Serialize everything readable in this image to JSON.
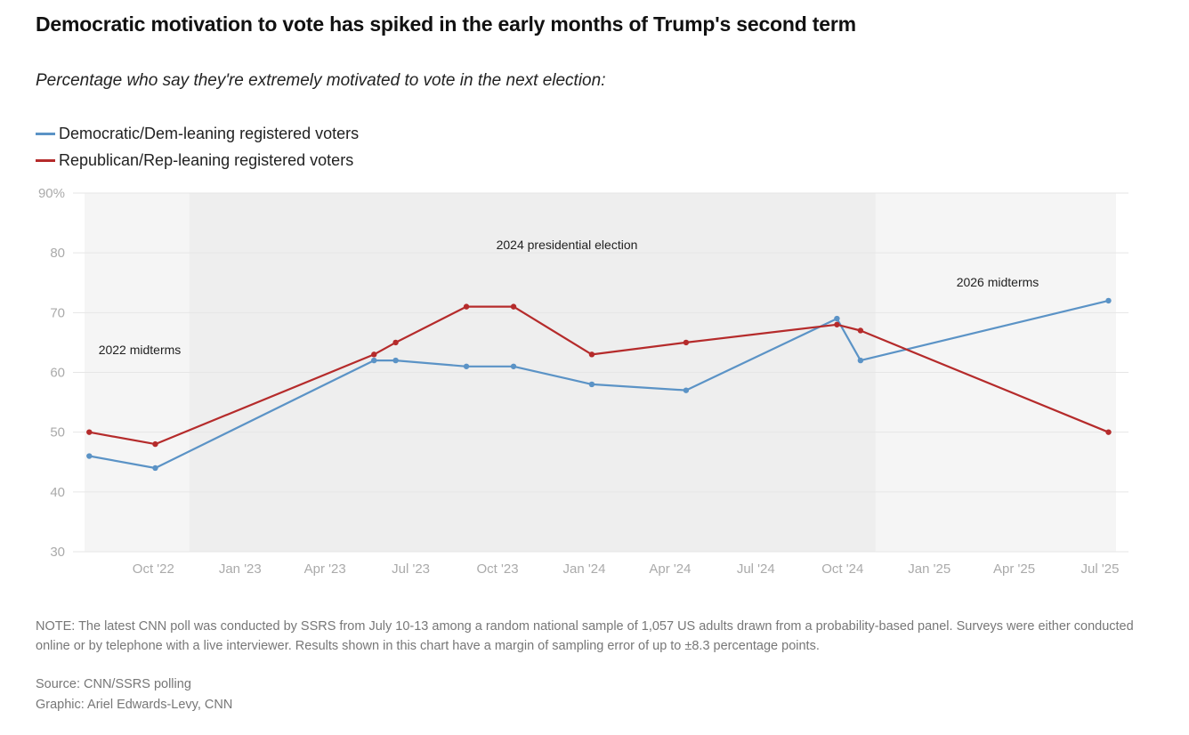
{
  "header": {
    "title": "Democratic motivation to vote has spiked in the early months of Trump's second term",
    "subtitle": "Percentage who say they're extremely motivated to vote in the next election:"
  },
  "legend": [
    {
      "label": "Democratic/Dem-leaning registered voters",
      "color": "#5b93c6"
    },
    {
      "label": "Republican/Rep-leaning registered voters",
      "color": "#b52b2b"
    }
  ],
  "chart_data": {
    "type": "line",
    "title": "Democratic motivation to vote has spiked in the early months of Trump's second term",
    "subtitle": "Percentage who say they're extremely motivated to vote in the next election:",
    "xlabel": "",
    "ylabel": "",
    "ylim": [
      30,
      90
    ],
    "yticks": [
      30,
      40,
      50,
      60,
      70,
      80,
      90
    ],
    "ytick_labels": [
      "30",
      "40",
      "50",
      "60",
      "70",
      "80",
      "90%"
    ],
    "xlim": [
      "2022-07-20",
      "2025-07-18"
    ],
    "xticks": [
      "2022-10-01",
      "2023-01-01",
      "2023-04-01",
      "2023-07-01",
      "2023-10-01",
      "2024-01-01",
      "2024-04-01",
      "2024-07-01",
      "2024-10-01",
      "2025-01-01",
      "2025-04-01",
      "2025-07-01"
    ],
    "xtick_labels": [
      "Oct '22",
      "Jan '23",
      "Apr '23",
      "Jul '23",
      "Oct '23",
      "Jan '24",
      "Apr '24",
      "Jul '24",
      "Oct '24",
      "Jan '25",
      "Apr '25",
      "Jul '25"
    ],
    "grid": true,
    "legend_position": "top-left",
    "regions": [
      {
        "label": "2022 midterms",
        "start": "2022-07-20",
        "end": "2022-11-08",
        "fill": "#f5f5f5"
      },
      {
        "label": "2024 presidential election",
        "start": "2022-11-08",
        "end": "2024-11-05",
        "fill": "#eeeeee"
      },
      {
        "label": "2026 midterms",
        "start": "2024-11-05",
        "end": "2025-07-18",
        "fill": "#f5f5f5"
      }
    ],
    "series": [
      {
        "name": "Democratic/Dem-leaning registered voters",
        "color": "#5b93c6",
        "points": [
          {
            "x": "2022-07-25",
            "y": 46
          },
          {
            "x": "2022-10-03",
            "y": 44
          },
          {
            "x": "2023-05-23",
            "y": 62
          },
          {
            "x": "2023-06-15",
            "y": 62
          },
          {
            "x": "2023-08-29",
            "y": 61
          },
          {
            "x": "2023-10-18",
            "y": 61
          },
          {
            "x": "2024-01-09",
            "y": 58
          },
          {
            "x": "2024-04-18",
            "y": 57
          },
          {
            "x": "2024-09-25",
            "y": 69
          },
          {
            "x": "2024-10-20",
            "y": 62
          },
          {
            "x": "2025-07-10",
            "y": 72
          }
        ]
      },
      {
        "name": "Republican/Rep-leaning registered voters",
        "color": "#b52b2b",
        "points": [
          {
            "x": "2022-07-25",
            "y": 50
          },
          {
            "x": "2022-10-03",
            "y": 48
          },
          {
            "x": "2023-05-23",
            "y": 63
          },
          {
            "x": "2023-06-15",
            "y": 65
          },
          {
            "x": "2023-08-29",
            "y": 71
          },
          {
            "x": "2023-10-18",
            "y": 71
          },
          {
            "x": "2024-01-09",
            "y": 63
          },
          {
            "x": "2024-04-18",
            "y": 65
          },
          {
            "x": "2024-09-25",
            "y": 68
          },
          {
            "x": "2024-10-20",
            "y": 67
          },
          {
            "x": "2025-07-10",
            "y": 50
          }
        ]
      }
    ]
  },
  "footer": {
    "note": "NOTE: The latest CNN poll was conducted by SSRS from July 10-13 among a random national sample of 1,057 US adults drawn from a probability-based panel. Surveys were either conducted online or by telephone with a live interviewer. Results shown in this chart have a margin of sampling error of up to ±8.3 percentage points.",
    "source": "Source: CNN/SSRS polling",
    "graphic": "Graphic: Ariel Edwards-Levy, CNN"
  }
}
